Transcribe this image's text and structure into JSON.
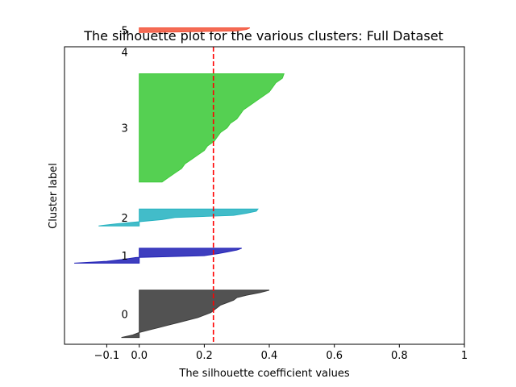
{
  "chart_data": {
    "type": "area",
    "title": "The silhouette plot for the various clusters: Full Dataset",
    "xlabel": "The silhouette coefficient values",
    "ylabel": "Cluster label",
    "xlim": [
      -0.23,
      1.0
    ],
    "ylim": [
      0,
      440
    ],
    "xticks": [
      -0.1,
      0.0,
      0.2,
      0.4,
      0.6,
      0.8,
      1.0
    ],
    "xtick_labels": [
      "−0.1",
      "0.0",
      "0.2",
      "0.4",
      "0.6",
      "0.8",
      "1"
    ],
    "yticks": [],
    "grid": false,
    "legend": "none",
    "average_silhouette": 0.228,
    "average_line_color": "#ff0000",
    "clusters": [
      {
        "label": "0",
        "color": "#3a3a3a",
        "y_lower": 10,
        "y_upper": 80,
        "values": [
          0.4,
          0.37,
          0.33,
          0.3,
          0.29,
          0.27,
          0.25,
          0.24,
          0.23,
          0.22,
          0.2,
          0.18,
          0.15,
          0.12,
          0.09,
          0.06,
          0.03,
          0.0,
          -0.02,
          -0.055
        ]
      },
      {
        "label": "1",
        "color": "#2323b6",
        "y_lower": 120,
        "y_upper": 142,
        "values": [
          0.315,
          0.3,
          0.27,
          0.24,
          0.2,
          -0.01,
          -0.05,
          -0.1,
          -0.2
        ]
      },
      {
        "label": "2",
        "color": "#28b3c1",
        "y_lower": 175,
        "y_upper": 200,
        "values": [
          0.365,
          0.36,
          0.33,
          0.29,
          0.11,
          0.07,
          0.0,
          -0.07,
          -0.125
        ]
      },
      {
        "label": "3",
        "color": "#3ec93a",
        "y_lower": 240,
        "y_upper": 400,
        "values": [
          0.445,
          0.44,
          0.42,
          0.41,
          0.4,
          0.38,
          0.36,
          0.34,
          0.32,
          0.31,
          0.3,
          0.28,
          0.27,
          0.25,
          0.24,
          0.23,
          0.21,
          0.2,
          0.18,
          0.16,
          0.14,
          0.13,
          0.11,
          0.09,
          0.07
        ]
      },
      {
        "label": "4",
        "color": "#ff6040",
        "y_lower": 432,
        "y_upper": 432,
        "values": []
      },
      {
        "label": "5",
        "color": "#f3563d",
        "y_lower": 461,
        "y_upper": 468,
        "values": [
          0.34,
          0.33,
          0.3,
          0.0
        ]
      }
    ]
  }
}
